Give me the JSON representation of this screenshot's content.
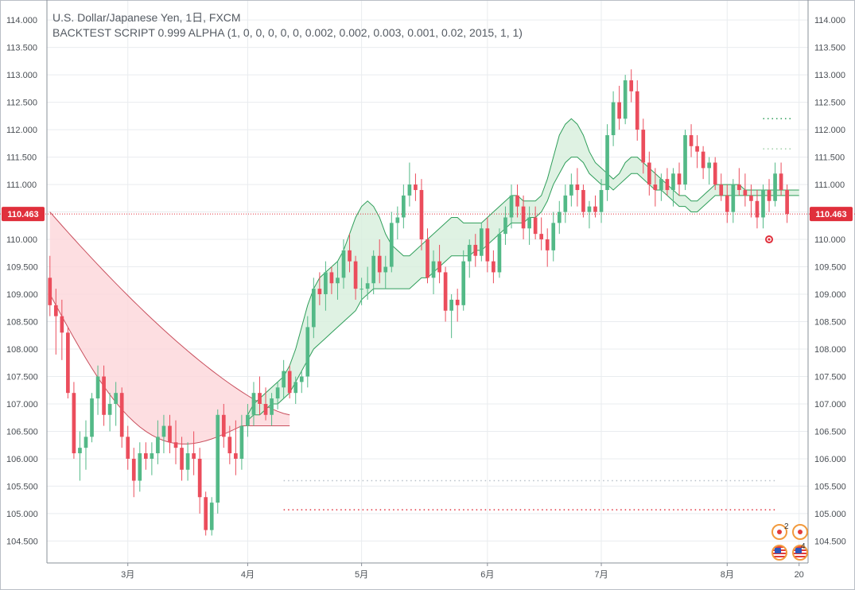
{
  "legend": {
    "symbol": "U.S. Dollar/Japanese Yen, 1日, FXCM",
    "strategy": "BACKTEST SCRIPT 0.999 ALPHA (1, 0, 0, 0, 0, 0, 0.002, 0.002, 0.003, 0.001, 0.02, 2015, 1, 1)"
  },
  "colors": {
    "up": "#53b987",
    "down": "#eb4d5c",
    "band_upper_line": "#c9505e",
    "band_fill_red": "#fdd6d9",
    "band_line_green": "#2f9e5a",
    "band_fill_green": "#d7efdc",
    "last_price": "#e0303c",
    "grid": "#e9ecef"
  },
  "event_icons": {
    "count_top": "2",
    "count_bottom": "4"
  },
  "chart_data": {
    "type": "candlestick",
    "title": "U.S. Dollar/Japanese Yen, 1日, FXCM",
    "y_range": [
      104.1,
      114.35
    ],
    "y_ticks": [
      "114.000",
      "113.500",
      "113.000",
      "112.500",
      "112.000",
      "111.500",
      "111.000",
      "110.500",
      "110.000",
      "109.500",
      "109.000",
      "108.500",
      "108.000",
      "107.500",
      "107.000",
      "106.500",
      "106.000",
      "105.500",
      "105.000",
      "104.500"
    ],
    "x_labels": [
      "3月",
      "4月",
      "5月",
      "6月",
      "7月",
      "8月",
      "20"
    ],
    "x_label_index": [
      13,
      33,
      52,
      73,
      92,
      113,
      125
    ],
    "x_range": [
      -0.5,
      126.5
    ],
    "last_price": 110.463,
    "last_price_label": "110.463",
    "candles": [
      [
        109.3,
        109.7,
        108.6,
        108.8
      ],
      [
        108.8,
        109.1,
        107.9,
        108.6
      ],
      [
        108.6,
        108.9,
        107.8,
        108.3
      ],
      [
        108.3,
        108.4,
        107.1,
        107.2
      ],
      [
        107.2,
        107.4,
        106.0,
        106.1
      ],
      [
        106.1,
        106.5,
        105.6,
        106.2
      ],
      [
        106.2,
        106.7,
        105.8,
        106.4
      ],
      [
        106.4,
        107.2,
        106.3,
        107.1
      ],
      [
        107.1,
        107.7,
        106.8,
        107.5
      ],
      [
        107.5,
        107.7,
        106.6,
        106.8
      ],
      [
        106.8,
        107.2,
        106.5,
        107.0
      ],
      [
        107.0,
        107.4,
        106.6,
        107.2
      ],
      [
        107.2,
        107.3,
        106.2,
        106.4
      ],
      [
        106.4,
        106.6,
        105.8,
        106.0
      ],
      [
        106.0,
        106.2,
        105.3,
        105.6
      ],
      [
        105.6,
        106.3,
        105.4,
        106.1
      ],
      [
        106.1,
        106.3,
        105.8,
        106.0
      ],
      [
        106.0,
        106.3,
        105.7,
        106.1
      ],
      [
        106.1,
        106.7,
        105.9,
        106.4
      ],
      [
        106.4,
        106.8,
        106.1,
        106.6
      ],
      [
        106.6,
        106.8,
        106.1,
        106.3
      ],
      [
        106.3,
        106.7,
        105.9,
        106.2
      ],
      [
        106.2,
        106.4,
        105.6,
        105.8
      ],
      [
        105.8,
        106.3,
        105.6,
        106.1
      ],
      [
        106.1,
        106.5,
        105.7,
        106.0
      ],
      [
        106.0,
        106.2,
        105.0,
        105.3
      ],
      [
        105.3,
        105.4,
        104.6,
        104.7
      ],
      [
        104.7,
        105.3,
        104.6,
        105.2
      ],
      [
        105.2,
        106.9,
        105.0,
        106.8
      ],
      [
        106.8,
        107.0,
        106.2,
        106.4
      ],
      [
        106.4,
        106.6,
        105.9,
        106.1
      ],
      [
        106.1,
        106.7,
        105.7,
        106.0
      ],
      [
        106.0,
        106.8,
        105.8,
        106.6
      ],
      [
        106.6,
        107.0,
        106.4,
        106.8
      ],
      [
        106.8,
        107.4,
        106.6,
        107.2
      ],
      [
        107.2,
        107.5,
        106.8,
        107.0
      ],
      [
        107.0,
        107.3,
        106.7,
        106.8
      ],
      [
        106.8,
        107.2,
        106.6,
        107.1
      ],
      [
        107.1,
        107.4,
        106.9,
        107.3
      ],
      [
        107.3,
        107.8,
        107.1,
        107.6
      ],
      [
        107.6,
        107.7,
        107.1,
        107.2
      ],
      [
        107.2,
        107.5,
        107.0,
        107.4
      ],
      [
        107.4,
        107.6,
        107.2,
        107.5
      ],
      [
        107.5,
        108.6,
        107.3,
        108.4
      ],
      [
        108.4,
        109.3,
        108.2,
        109.1
      ],
      [
        109.1,
        109.4,
        108.8,
        109.0
      ],
      [
        109.0,
        109.6,
        108.7,
        109.4
      ],
      [
        109.4,
        109.5,
        109.0,
        109.2
      ],
      [
        109.2,
        109.6,
        108.9,
        109.3
      ],
      [
        109.3,
        110.0,
        109.1,
        109.8
      ],
      [
        109.8,
        110.1,
        109.4,
        109.6
      ],
      [
        109.6,
        109.7,
        108.9,
        109.1
      ],
      [
        109.1,
        109.3,
        108.8,
        109.1
      ],
      [
        109.1,
        109.5,
        108.9,
        109.2
      ],
      [
        109.2,
        109.8,
        109.0,
        109.7
      ],
      [
        109.7,
        110.0,
        109.2,
        109.4
      ],
      [
        109.4,
        109.7,
        109.1,
        109.5
      ],
      [
        109.5,
        110.5,
        109.4,
        110.3
      ],
      [
        110.3,
        110.6,
        110.0,
        110.4
      ],
      [
        110.4,
        111.0,
        110.2,
        110.8
      ],
      [
        110.8,
        111.4,
        110.6,
        111.0
      ],
      [
        111.0,
        111.2,
        110.7,
        110.9
      ],
      [
        110.9,
        111.1,
        109.8,
        110.0
      ],
      [
        110.0,
        110.2,
        109.2,
        109.3
      ],
      [
        109.3,
        109.8,
        109.0,
        109.6
      ],
      [
        109.6,
        109.9,
        109.2,
        109.4
      ],
      [
        109.4,
        109.5,
        108.5,
        108.7
      ],
      [
        108.7,
        109.0,
        108.2,
        108.9
      ],
      [
        108.9,
        109.1,
        108.5,
        108.8
      ],
      [
        108.8,
        109.8,
        108.7,
        109.6
      ],
      [
        109.6,
        110.0,
        109.3,
        109.9
      ],
      [
        109.9,
        110.1,
        109.5,
        109.7
      ],
      [
        109.7,
        110.3,
        109.6,
        110.2
      ],
      [
        110.2,
        110.4,
        109.4,
        109.6
      ],
      [
        109.6,
        109.8,
        109.2,
        109.4
      ],
      [
        109.4,
        110.2,
        109.3,
        110.1
      ],
      [
        110.1,
        110.6,
        109.9,
        110.4
      ],
      [
        110.4,
        111.0,
        110.2,
        110.8
      ],
      [
        110.8,
        111.0,
        110.4,
        110.6
      ],
      [
        110.6,
        110.8,
        110.0,
        110.2
      ],
      [
        110.2,
        110.6,
        109.9,
        110.4
      ],
      [
        110.4,
        110.6,
        110.0,
        110.1
      ],
      [
        110.1,
        110.4,
        109.8,
        110.0
      ],
      [
        110.0,
        110.2,
        109.5,
        109.8
      ],
      [
        109.8,
        110.5,
        109.6,
        110.3
      ],
      [
        110.3,
        110.7,
        110.1,
        110.5
      ],
      [
        110.5,
        111.0,
        110.3,
        110.8
      ],
      [
        110.8,
        111.2,
        110.6,
        111.0
      ],
      [
        111.0,
        111.3,
        110.6,
        110.9
      ],
      [
        110.9,
        111.0,
        110.4,
        110.5
      ],
      [
        110.5,
        110.7,
        110.2,
        110.6
      ],
      [
        110.6,
        110.8,
        110.4,
        110.5
      ],
      [
        110.5,
        111.1,
        110.3,
        110.9
      ],
      [
        110.9,
        112.1,
        110.7,
        111.9
      ],
      [
        111.9,
        112.7,
        111.7,
        112.5
      ],
      [
        112.5,
        112.8,
        112.0,
        112.2
      ],
      [
        112.2,
        113.0,
        112.1,
        112.9
      ],
      [
        112.9,
        113.1,
        112.5,
        112.7
      ],
      [
        112.7,
        112.9,
        111.8,
        112.0
      ],
      [
        112.0,
        112.2,
        111.2,
        111.4
      ],
      [
        111.4,
        111.6,
        110.8,
        111.0
      ],
      [
        111.0,
        111.3,
        110.6,
        110.9
      ],
      [
        110.9,
        111.2,
        110.7,
        111.1
      ],
      [
        111.1,
        111.3,
        110.8,
        110.9
      ],
      [
        110.9,
        111.3,
        110.6,
        111.2
      ],
      [
        111.2,
        111.4,
        110.8,
        111.0
      ],
      [
        111.0,
        112.0,
        110.9,
        111.9
      ],
      [
        111.9,
        112.1,
        111.5,
        111.7
      ],
      [
        111.7,
        111.9,
        111.3,
        111.6
      ],
      [
        111.6,
        111.7,
        111.1,
        111.3
      ],
      [
        111.3,
        111.5,
        111.0,
        111.4
      ],
      [
        111.4,
        111.5,
        110.9,
        111.0
      ],
      [
        111.0,
        111.2,
        110.7,
        110.8
      ],
      [
        110.8,
        111.0,
        110.3,
        110.5
      ],
      [
        110.5,
        111.1,
        110.3,
        111.0
      ],
      [
        111.0,
        111.3,
        110.8,
        110.9
      ],
      [
        110.9,
        111.2,
        110.6,
        110.8
      ],
      [
        110.8,
        111.0,
        110.4,
        110.7
      ],
      [
        110.7,
        110.9,
        110.2,
        110.4
      ],
      [
        110.4,
        111.0,
        110.2,
        110.9
      ],
      [
        110.9,
        111.1,
        110.5,
        110.7
      ],
      [
        110.7,
        111.4,
        110.6,
        111.2
      ],
      [
        111.2,
        111.4,
        110.8,
        110.9
      ],
      [
        110.9,
        111.0,
        110.3,
        110.463
      ]
    ],
    "red_band": {
      "start_index": 0,
      "end_index": 40,
      "upper_start": 110.5,
      "upper_end": 106.8,
      "lower_start": 109.0,
      "lower_end": 106.6
    },
    "green_band": {
      "start_index": 33,
      "end_index": 125,
      "top_series": [
        106.8,
        107.0,
        107.1,
        107.2,
        107.3,
        107.4,
        107.5,
        107.7,
        108.0,
        108.4,
        108.8,
        109.1,
        109.3,
        109.4,
        109.5,
        109.6,
        109.8,
        110.1,
        110.4,
        110.6,
        110.7,
        110.6,
        110.4,
        110.1,
        109.9,
        109.8,
        109.7,
        109.7,
        109.8,
        109.9,
        110.0,
        110.1,
        110.2,
        110.3,
        110.4,
        110.4,
        110.3,
        110.3,
        110.3,
        110.3,
        110.4,
        110.5,
        110.6,
        110.7,
        110.8,
        110.8,
        110.7,
        110.7,
        110.7,
        110.8,
        111.1,
        111.5,
        111.9,
        112.1,
        112.2,
        112.1,
        111.9,
        111.6,
        111.4,
        111.3,
        111.2,
        111.1,
        111.2,
        111.4,
        111.5,
        111.5,
        111.4,
        111.3,
        111.2,
        111.1,
        111.0,
        110.9,
        110.8,
        110.8,
        110.7,
        110.7,
        110.8,
        110.9,
        111.0,
        111.0,
        111.0,
        111.0,
        111.0,
        110.9,
        110.9,
        110.9,
        110.9,
        110.9,
        110.9,
        110.9,
        110.9,
        110.9,
        110.9
      ],
      "bottom_series": [
        106.7,
        106.8,
        106.8,
        106.9,
        107.0,
        107.0,
        107.1,
        107.2,
        107.4,
        107.6,
        107.8,
        108.0,
        108.1,
        108.2,
        108.3,
        108.4,
        108.5,
        108.6,
        108.7,
        108.9,
        109.0,
        109.1,
        109.1,
        109.1,
        109.1,
        109.1,
        109.1,
        109.1,
        109.2,
        109.3,
        109.3,
        109.4,
        109.5,
        109.6,
        109.7,
        109.7,
        109.7,
        109.7,
        109.8,
        109.8,
        109.9,
        110.0,
        110.1,
        110.2,
        110.3,
        110.3,
        110.3,
        110.4,
        110.4,
        110.5,
        110.7,
        111.0,
        111.2,
        111.4,
        111.5,
        111.5,
        111.4,
        111.2,
        111.1,
        111.0,
        111.0,
        110.9,
        111.0,
        111.1,
        111.2,
        111.2,
        111.1,
        111.0,
        110.9,
        110.9,
        110.8,
        110.7,
        110.6,
        110.6,
        110.5,
        110.5,
        110.6,
        110.7,
        110.8,
        110.8,
        110.8,
        110.8,
        110.8,
        110.8,
        110.8,
        110.8,
        110.8,
        110.8,
        110.8,
        110.8,
        110.8,
        110.8,
        110.8
      ]
    },
    "dotted_levels": [
      {
        "price": 112.2,
        "start_index": 119,
        "end_index": 124,
        "color": "#2f9e5a"
      },
      {
        "price": 111.65,
        "start_index": 119,
        "end_index": 124,
        "color": "#9fcfa8"
      },
      {
        "price": 105.6,
        "start_index": 39,
        "end_index": 121,
        "color": "#b7c0c9"
      },
      {
        "price": 105.07,
        "start_index": 39,
        "end_index": 121,
        "color": "#e0303c"
      }
    ],
    "markers": [
      {
        "index": 120,
        "price": 110.0,
        "color": "#e0303c"
      }
    ]
  }
}
